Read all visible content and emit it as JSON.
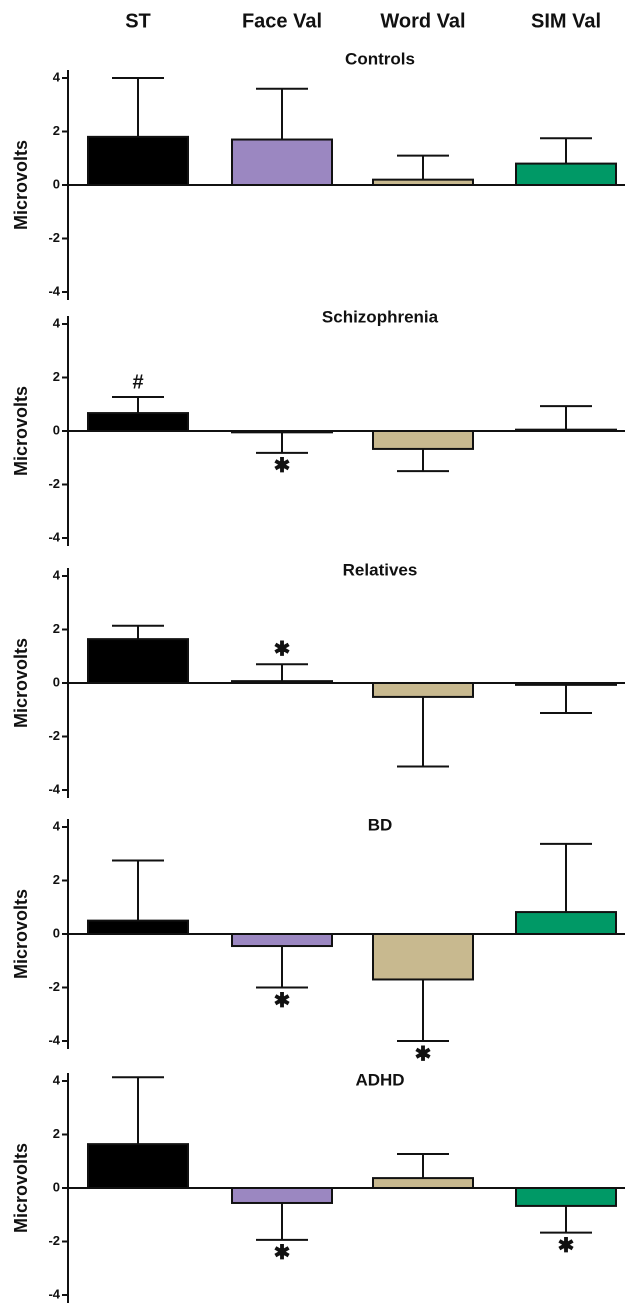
{
  "categories": [
    "ST",
    "Face Val",
    "Word Val",
    "SIM Val"
  ],
  "chart_data": [
    {
      "type": "bar",
      "title": "Controls",
      "y_label": "Microvolts",
      "colors": [
        "#000000",
        "#9b87c1",
        "#c8b98f",
        "#009966"
      ],
      "values": [
        1.8,
        1.7,
        0.2,
        0.8
      ],
      "errors": [
        2.2,
        1.9,
        0.9,
        0.95
      ],
      "markers": [
        null,
        null,
        null,
        null
      ],
      "ylim": [
        -4.3,
        4.3
      ],
      "yticks": [
        -4,
        -2,
        0,
        2,
        4
      ]
    },
    {
      "type": "bar",
      "title": "Schizophrenia",
      "y_label": "Microvolts",
      "colors": [
        "#000000",
        "#9b87c1",
        "#c8b98f",
        "#009966"
      ],
      "values": [
        0.67,
        -0.05,
        -0.67,
        0.05
      ],
      "errors": [
        0.6,
        0.77,
        0.83,
        0.88
      ],
      "markers": [
        "#",
        "✱",
        null,
        null
      ],
      "ylim": [
        -4.3,
        4.3
      ],
      "yticks": [
        -4,
        -2,
        0,
        2,
        4
      ]
    },
    {
      "type": "bar",
      "title": "Relatives",
      "y_label": "Microvolts",
      "colors": [
        "#000000",
        "#9b87c1",
        "#c8b98f",
        "#009966"
      ],
      "values": [
        1.64,
        0.07,
        -0.52,
        -0.07
      ],
      "errors": [
        0.5,
        0.63,
        2.6,
        1.05
      ],
      "markers": [
        null,
        "✱",
        null,
        null
      ],
      "ylim": [
        -4.3,
        4.3
      ],
      "yticks": [
        -4,
        -2,
        0,
        2,
        4
      ]
    },
    {
      "type": "bar",
      "title": "BD",
      "y_label": "Microvolts",
      "colors": [
        "#000000",
        "#9b87c1",
        "#c8b98f",
        "#009966"
      ],
      "values": [
        0.5,
        -0.45,
        -1.7,
        0.82
      ],
      "errors": [
        2.25,
        1.55,
        2.3,
        2.55
      ],
      "markers": [
        null,
        "✱",
        "✱",
        null
      ],
      "ylim": [
        -4.3,
        4.3
      ],
      "yticks": [
        -4,
        -2,
        0,
        2,
        4
      ]
    },
    {
      "type": "bar",
      "title": "ADHD",
      "y_label": "Microvolts",
      "colors": [
        "#000000",
        "#9b87c1",
        "#c8b98f",
        "#009966"
      ],
      "values": [
        1.64,
        -0.56,
        0.37,
        -0.67
      ],
      "errors": [
        2.5,
        1.38,
        0.9,
        1.0
      ],
      "markers": [
        null,
        "✱",
        null,
        "✱"
      ],
      "ylim": [
        -4.3,
        4.3
      ],
      "yticks": [
        -4,
        -2,
        0,
        2,
        4
      ]
    }
  ]
}
